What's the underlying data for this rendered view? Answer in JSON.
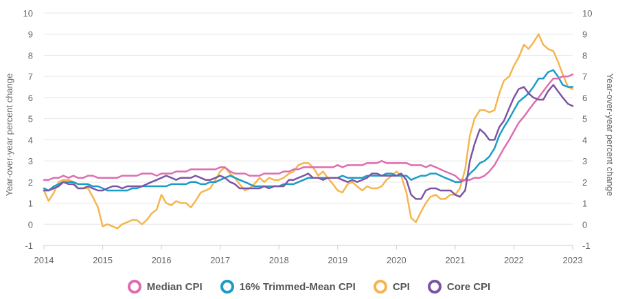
{
  "chart_data": {
    "type": "line",
    "xlabel": "",
    "ylabel": "Year-over-year percent change",
    "ylabel_right": "Year-over-year percent change",
    "xlim": [
      2014,
      2023
    ],
    "ylim": [
      -1,
      10
    ],
    "x_ticks": [
      "2014",
      "2015",
      "2016",
      "2017",
      "2018",
      "2019",
      "2020",
      "2021",
      "2022",
      "2023"
    ],
    "y_ticks": [
      "-1",
      "0",
      "1",
      "2",
      "3",
      "4",
      "5",
      "6",
      "7",
      "8",
      "9",
      "10"
    ],
    "grid": "horizontal",
    "legend_position": "bottom",
    "series": [
      {
        "name": "CPI",
        "color": "#f5b54d",
        "x": [
          2014.0,
          2014.08,
          2014.17,
          2014.25,
          2014.33,
          2014.42,
          2014.5,
          2014.58,
          2014.67,
          2014.75,
          2014.83,
          2014.92,
          2015.0,
          2015.08,
          2015.17,
          2015.25,
          2015.33,
          2015.42,
          2015.5,
          2015.58,
          2015.67,
          2015.75,
          2015.83,
          2015.92,
          2016.0,
          2016.08,
          2016.17,
          2016.25,
          2016.33,
          2016.42,
          2016.5,
          2016.58,
          2016.67,
          2016.75,
          2016.83,
          2016.92,
          2017.0,
          2017.08,
          2017.17,
          2017.25,
          2017.33,
          2017.42,
          2017.5,
          2017.58,
          2017.67,
          2017.75,
          2017.83,
          2017.92,
          2018.0,
          2018.08,
          2018.17,
          2018.25,
          2018.33,
          2018.42,
          2018.5,
          2018.58,
          2018.67,
          2018.75,
          2018.83,
          2018.92,
          2019.0,
          2019.08,
          2019.17,
          2019.25,
          2019.33,
          2019.42,
          2019.5,
          2019.58,
          2019.67,
          2019.75,
          2019.83,
          2019.92,
          2020.0,
          2020.08,
          2020.17,
          2020.25,
          2020.33,
          2020.42,
          2020.5,
          2020.58,
          2020.67,
          2020.75,
          2020.83,
          2020.92,
          2021.0,
          2021.08,
          2021.17,
          2021.25,
          2021.33,
          2021.42,
          2021.5,
          2021.58,
          2021.67,
          2021.75,
          2021.83,
          2021.92,
          2022.0,
          2022.08,
          2022.17,
          2022.25,
          2022.33,
          2022.42,
          2022.5,
          2022.58,
          2022.67,
          2022.75,
          2022.83,
          2022.92,
          2023.0
        ],
        "y": [
          1.6,
          1.1,
          1.5,
          2.0,
          2.1,
          2.1,
          2.0,
          1.7,
          1.7,
          1.7,
          1.3,
          0.8,
          -0.1,
          0.0,
          -0.1,
          -0.2,
          0.0,
          0.1,
          0.2,
          0.2,
          0.0,
          0.2,
          0.5,
          0.7,
          1.4,
          1.0,
          0.9,
          1.1,
          1.0,
          1.0,
          0.8,
          1.1,
          1.5,
          1.6,
          1.7,
          2.1,
          2.5,
          2.7,
          2.4,
          2.2,
          1.9,
          1.6,
          1.7,
          1.9,
          2.2,
          2.0,
          2.2,
          2.1,
          2.1,
          2.2,
          2.4,
          2.5,
          2.8,
          2.9,
          2.9,
          2.7,
          2.3,
          2.5,
          2.2,
          1.9,
          1.6,
          1.5,
          1.9,
          2.0,
          1.8,
          1.6,
          1.8,
          1.7,
          1.7,
          1.8,
          2.1,
          2.3,
          2.5,
          2.3,
          1.5,
          0.3,
          0.1,
          0.6,
          1.0,
          1.3,
          1.4,
          1.2,
          1.2,
          1.4,
          1.4,
          1.7,
          2.6,
          4.2,
          5.0,
          5.4,
          5.4,
          5.3,
          5.4,
          6.2,
          6.8,
          7.0,
          7.5,
          7.9,
          8.5,
          8.3,
          8.6,
          9.0,
          8.5,
          8.3,
          8.2,
          7.7,
          7.1,
          6.5,
          6.4
        ]
      },
      {
        "name": "16% Trimmed-Mean CPI",
        "color": "#1a9cc6",
        "x": [
          2014.0,
          2014.08,
          2014.17,
          2014.25,
          2014.33,
          2014.42,
          2014.5,
          2014.58,
          2014.67,
          2014.75,
          2014.83,
          2014.92,
          2015.0,
          2015.08,
          2015.17,
          2015.25,
          2015.33,
          2015.42,
          2015.5,
          2015.58,
          2015.67,
          2015.75,
          2015.83,
          2015.92,
          2016.0,
          2016.08,
          2016.17,
          2016.25,
          2016.33,
          2016.42,
          2016.5,
          2016.58,
          2016.67,
          2016.75,
          2016.83,
          2016.92,
          2017.0,
          2017.08,
          2017.17,
          2017.25,
          2017.33,
          2017.42,
          2017.5,
          2017.58,
          2017.67,
          2017.75,
          2017.83,
          2017.92,
          2018.0,
          2018.08,
          2018.17,
          2018.25,
          2018.33,
          2018.42,
          2018.5,
          2018.58,
          2018.67,
          2018.75,
          2018.83,
          2018.92,
          2019.0,
          2019.08,
          2019.17,
          2019.25,
          2019.33,
          2019.42,
          2019.5,
          2019.58,
          2019.67,
          2019.75,
          2019.83,
          2019.92,
          2020.0,
          2020.08,
          2020.17,
          2020.25,
          2020.33,
          2020.42,
          2020.5,
          2020.58,
          2020.67,
          2020.75,
          2020.83,
          2020.92,
          2021.0,
          2021.08,
          2021.17,
          2021.25,
          2021.33,
          2021.42,
          2021.5,
          2021.58,
          2021.67,
          2021.75,
          2021.83,
          2021.92,
          2022.0,
          2022.08,
          2022.17,
          2022.25,
          2022.33,
          2022.42,
          2022.5,
          2022.58,
          2022.67,
          2022.75,
          2022.83,
          2022.92,
          2023.0
        ],
        "y": [
          1.7,
          1.6,
          1.8,
          1.9,
          2.0,
          2.0,
          2.0,
          1.9,
          1.9,
          1.9,
          1.8,
          1.8,
          1.7,
          1.6,
          1.6,
          1.6,
          1.6,
          1.6,
          1.7,
          1.7,
          1.8,
          1.8,
          1.8,
          1.8,
          1.8,
          1.8,
          1.9,
          1.9,
          1.9,
          1.9,
          2.0,
          2.0,
          1.9,
          1.9,
          2.0,
          2.0,
          2.1,
          2.2,
          2.3,
          2.2,
          2.1,
          2.0,
          1.9,
          1.8,
          1.8,
          1.8,
          1.8,
          1.8,
          1.8,
          1.9,
          1.9,
          1.9,
          2.0,
          2.1,
          2.2,
          2.2,
          2.2,
          2.2,
          2.2,
          2.2,
          2.2,
          2.3,
          2.2,
          2.2,
          2.2,
          2.2,
          2.3,
          2.3,
          2.3,
          2.3,
          2.4,
          2.4,
          2.3,
          2.3,
          2.3,
          2.1,
          2.2,
          2.3,
          2.3,
          2.4,
          2.4,
          2.3,
          2.2,
          2.1,
          2.0,
          2.0,
          2.1,
          2.4,
          2.6,
          2.9,
          3.0,
          3.2,
          3.6,
          4.2,
          4.6,
          5.0,
          5.4,
          5.8,
          6.0,
          6.2,
          6.5,
          6.9,
          6.9,
          7.2,
          7.3,
          7.0,
          6.6,
          6.5,
          6.5
        ]
      },
      {
        "name": "Median CPI",
        "color": "#dd6db0",
        "x": [
          2014.0,
          2014.08,
          2014.17,
          2014.25,
          2014.33,
          2014.42,
          2014.5,
          2014.58,
          2014.67,
          2014.75,
          2014.83,
          2014.92,
          2015.0,
          2015.08,
          2015.17,
          2015.25,
          2015.33,
          2015.42,
          2015.5,
          2015.58,
          2015.67,
          2015.75,
          2015.83,
          2015.92,
          2016.0,
          2016.08,
          2016.17,
          2016.25,
          2016.33,
          2016.42,
          2016.5,
          2016.58,
          2016.67,
          2016.75,
          2016.83,
          2016.92,
          2017.0,
          2017.08,
          2017.17,
          2017.25,
          2017.33,
          2017.42,
          2017.5,
          2017.58,
          2017.67,
          2017.75,
          2017.83,
          2017.92,
          2018.0,
          2018.08,
          2018.17,
          2018.25,
          2018.33,
          2018.42,
          2018.5,
          2018.58,
          2018.67,
          2018.75,
          2018.83,
          2018.92,
          2019.0,
          2019.08,
          2019.17,
          2019.25,
          2019.33,
          2019.42,
          2019.5,
          2019.58,
          2019.67,
          2019.75,
          2019.83,
          2019.92,
          2020.0,
          2020.08,
          2020.17,
          2020.25,
          2020.33,
          2020.42,
          2020.5,
          2020.58,
          2020.67,
          2020.75,
          2020.83,
          2020.92,
          2021.0,
          2021.08,
          2021.17,
          2021.25,
          2021.33,
          2021.42,
          2021.5,
          2021.58,
          2021.67,
          2021.75,
          2021.83,
          2021.92,
          2022.0,
          2022.08,
          2022.17,
          2022.25,
          2022.33,
          2022.42,
          2022.5,
          2022.58,
          2022.67,
          2022.75,
          2022.83,
          2022.92,
          2023.0
        ],
        "y": [
          2.1,
          2.1,
          2.2,
          2.2,
          2.3,
          2.2,
          2.3,
          2.2,
          2.2,
          2.3,
          2.3,
          2.2,
          2.2,
          2.2,
          2.2,
          2.2,
          2.3,
          2.3,
          2.3,
          2.3,
          2.4,
          2.4,
          2.4,
          2.3,
          2.4,
          2.4,
          2.4,
          2.5,
          2.5,
          2.5,
          2.6,
          2.6,
          2.6,
          2.6,
          2.6,
          2.6,
          2.7,
          2.7,
          2.5,
          2.4,
          2.4,
          2.4,
          2.3,
          2.3,
          2.3,
          2.4,
          2.4,
          2.4,
          2.4,
          2.5,
          2.5,
          2.6,
          2.6,
          2.7,
          2.7,
          2.7,
          2.7,
          2.7,
          2.7,
          2.7,
          2.8,
          2.7,
          2.8,
          2.8,
          2.8,
          2.8,
          2.9,
          2.9,
          2.9,
          3.0,
          2.9,
          2.9,
          2.9,
          2.9,
          2.9,
          2.8,
          2.8,
          2.8,
          2.7,
          2.8,
          2.7,
          2.6,
          2.5,
          2.4,
          2.3,
          2.1,
          2.1,
          2.1,
          2.2,
          2.2,
          2.3,
          2.5,
          2.8,
          3.2,
          3.6,
          4.0,
          4.4,
          4.8,
          5.1,
          5.4,
          5.7,
          6.0,
          6.3,
          6.6,
          6.9,
          6.9,
          7.0,
          7.0,
          7.1
        ]
      },
      {
        "name": "Core CPI",
        "color": "#7b54a3",
        "x": [
          2014.0,
          2014.08,
          2014.17,
          2014.25,
          2014.33,
          2014.42,
          2014.5,
          2014.58,
          2014.67,
          2014.75,
          2014.83,
          2014.92,
          2015.0,
          2015.08,
          2015.17,
          2015.25,
          2015.33,
          2015.42,
          2015.5,
          2015.58,
          2015.67,
          2015.75,
          2015.83,
          2015.92,
          2016.0,
          2016.08,
          2016.17,
          2016.25,
          2016.33,
          2016.42,
          2016.5,
          2016.58,
          2016.67,
          2016.75,
          2016.83,
          2016.92,
          2017.0,
          2017.08,
          2017.17,
          2017.25,
          2017.33,
          2017.42,
          2017.5,
          2017.58,
          2017.67,
          2017.75,
          2017.83,
          2017.92,
          2018.0,
          2018.08,
          2018.17,
          2018.25,
          2018.33,
          2018.42,
          2018.5,
          2018.58,
          2018.67,
          2018.75,
          2018.83,
          2018.92,
          2019.0,
          2019.08,
          2019.17,
          2019.25,
          2019.33,
          2019.42,
          2019.5,
          2019.58,
          2019.67,
          2019.75,
          2019.83,
          2019.92,
          2020.0,
          2020.08,
          2020.17,
          2020.25,
          2020.33,
          2020.42,
          2020.5,
          2020.58,
          2020.67,
          2020.75,
          2020.83,
          2020.92,
          2021.0,
          2021.08,
          2021.17,
          2021.25,
          2021.33,
          2021.42,
          2021.5,
          2021.58,
          2021.67,
          2021.75,
          2021.83,
          2021.92,
          2022.0,
          2022.08,
          2022.17,
          2022.25,
          2022.33,
          2022.42,
          2022.5,
          2022.58,
          2022.67,
          2022.75,
          2022.83,
          2022.92,
          2023.0
        ],
        "y": [
          1.6,
          1.6,
          1.7,
          1.8,
          2.0,
          1.9,
          1.9,
          1.7,
          1.7,
          1.8,
          1.7,
          1.6,
          1.6,
          1.7,
          1.8,
          1.8,
          1.7,
          1.8,
          1.8,
          1.8,
          1.8,
          1.9,
          2.0,
          2.1,
          2.2,
          2.3,
          2.2,
          2.1,
          2.2,
          2.2,
          2.2,
          2.3,
          2.2,
          2.1,
          2.1,
          2.2,
          2.3,
          2.2,
          2.0,
          1.9,
          1.7,
          1.7,
          1.7,
          1.7,
          1.7,
          1.8,
          1.7,
          1.8,
          1.8,
          1.8,
          2.1,
          2.1,
          2.2,
          2.3,
          2.4,
          2.2,
          2.2,
          2.1,
          2.2,
          2.2,
          2.2,
          2.1,
          2.0,
          2.1,
          2.0,
          2.1,
          2.2,
          2.4,
          2.4,
          2.3,
          2.3,
          2.3,
          2.3,
          2.4,
          2.1,
          1.4,
          1.2,
          1.2,
          1.6,
          1.7,
          1.7,
          1.6,
          1.6,
          1.6,
          1.4,
          1.3,
          1.6,
          3.0,
          3.8,
          4.5,
          4.3,
          4.0,
          4.0,
          4.6,
          4.9,
          5.5,
          6.0,
          6.4,
          6.5,
          6.2,
          6.0,
          5.9,
          5.9,
          6.3,
          6.6,
          6.3,
          6.0,
          5.7,
          5.6
        ]
      }
    ],
    "legend_order": [
      "Median CPI",
      "16% Trimmed-Mean CPI",
      "CPI",
      "Core CPI"
    ]
  }
}
